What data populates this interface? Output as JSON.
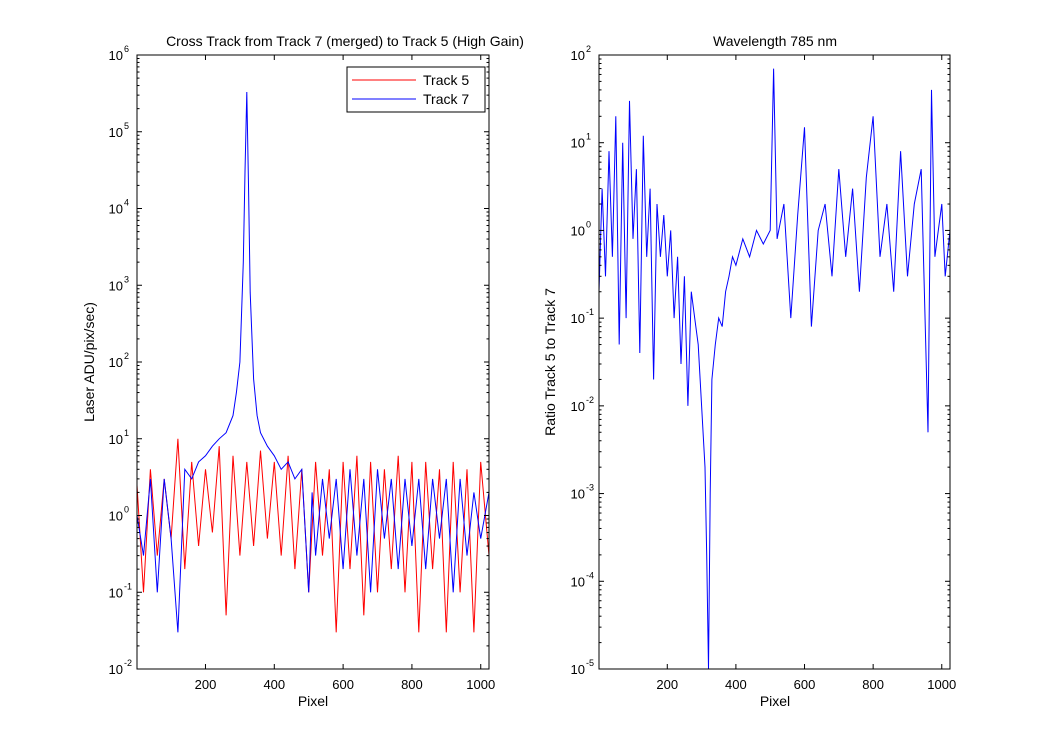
{
  "colors": {
    "track5": "#ff0000",
    "track7": "#0000ff",
    "axis": "#000000",
    "background": "#ffffff"
  },
  "chart_data": [
    {
      "type": "line",
      "title": "Cross Track from Track 7 (merged) to Track 5 (High Gain)",
      "xlabel": "Pixel",
      "ylabel": "Laser ADU/pix/sec)",
      "xlim": [
        1,
        1024
      ],
      "ylim": [
        0.01,
        1000000
      ],
      "yscale": "log",
      "xticks": [
        "200",
        "400",
        "600",
        "800",
        "1000"
      ],
      "yticks": [
        {
          "base": "10",
          "exp": "-2"
        },
        {
          "base": "10",
          "exp": "-1"
        },
        {
          "base": "10",
          "exp": "0"
        },
        {
          "base": "10",
          "exp": "1"
        },
        {
          "base": "10",
          "exp": "2"
        },
        {
          "base": "10",
          "exp": "3"
        },
        {
          "base": "10",
          "exp": "4"
        },
        {
          "base": "10",
          "exp": "5"
        },
        {
          "base": "10",
          "exp": "6"
        }
      ],
      "legend": {
        "placement": "top-right",
        "entries": [
          "Track 5",
          "Track 7"
        ]
      },
      "grid": false,
      "series": [
        {
          "name": "Track 5",
          "x": [
            1,
            20,
            40,
            60,
            80,
            100,
            120,
            140,
            160,
            180,
            200,
            220,
            240,
            260,
            280,
            300,
            320,
            340,
            360,
            380,
            400,
            420,
            440,
            460,
            480,
            500,
            520,
            540,
            560,
            580,
            600,
            620,
            640,
            660,
            680,
            700,
            720,
            740,
            760,
            780,
            800,
            820,
            840,
            860,
            880,
            900,
            920,
            940,
            960,
            980,
            1000,
            1024
          ],
          "y": [
            2.5,
            0.1,
            4,
            0.3,
            3,
            0.5,
            10,
            0.2,
            5,
            0.4,
            4,
            0.6,
            8,
            0.05,
            6,
            0.3,
            5,
            0.4,
            7,
            0.5,
            5,
            0.3,
            6,
            0.2,
            4,
            0.1,
            5,
            0.3,
            4,
            0.03,
            5,
            0.2,
            6,
            0.05,
            5,
            0.1,
            4,
            0.2,
            6,
            0.1,
            5,
            0.03,
            5,
            0.2,
            4,
            0.03,
            5,
            0.1,
            4,
            0.03,
            5,
            0.3
          ]
        },
        {
          "name": "Track 7",
          "x": [
            1,
            20,
            40,
            60,
            80,
            100,
            120,
            140,
            160,
            180,
            200,
            220,
            240,
            260,
            280,
            290,
            300,
            310,
            315,
            320,
            325,
            330,
            340,
            350,
            360,
            380,
            400,
            420,
            440,
            460,
            480,
            500,
            510,
            520,
            540,
            560,
            580,
            600,
            620,
            640,
            660,
            680,
            700,
            720,
            740,
            760,
            780,
            800,
            820,
            840,
            860,
            880,
            900,
            920,
            940,
            960,
            980,
            1000,
            1024
          ],
          "y": [
            1,
            0.3,
            3,
            0.1,
            3,
            0.5,
            0.03,
            4,
            3,
            5,
            6,
            8,
            10,
            12,
            20,
            40,
            100,
            2000,
            30000,
            330000,
            20000,
            800,
            60,
            20,
            12,
            8,
            6,
            4,
            5,
            3,
            4,
            0.1,
            2,
            0.3,
            3,
            0.5,
            3,
            0.2,
            4,
            0.3,
            3,
            0.1,
            4,
            0.5,
            3,
            0.2,
            3,
            0.4,
            3,
            0.2,
            3,
            0.5,
            3,
            0.1,
            3,
            0.3,
            2,
            0.5,
            2
          ]
        }
      ]
    },
    {
      "type": "line",
      "title": "Wavelength 785 nm",
      "xlabel": "Pixel",
      "ylabel": "Ratio Track 5 to Track 7",
      "xlim": [
        1,
        1024
      ],
      "ylim": [
        1e-05,
        100
      ],
      "yscale": "log",
      "xticks": [
        "200",
        "400",
        "600",
        "800",
        "1000"
      ],
      "yticks": [
        {
          "base": "10",
          "exp": "-5"
        },
        {
          "base": "10",
          "exp": "-4"
        },
        {
          "base": "10",
          "exp": "-3"
        },
        {
          "base": "10",
          "exp": "-2"
        },
        {
          "base": "10",
          "exp": "-1"
        },
        {
          "base": "10",
          "exp": "0"
        },
        {
          "base": "10",
          "exp": "1"
        },
        {
          "base": "10",
          "exp": "2"
        }
      ],
      "grid": false,
      "series": [
        {
          "x": [
            1,
            10,
            20,
            30,
            40,
            50,
            60,
            70,
            80,
            90,
            100,
            110,
            120,
            130,
            140,
            150,
            160,
            170,
            180,
            190,
            200,
            210,
            220,
            230,
            240,
            250,
            260,
            270,
            280,
            290,
            300,
            310,
            315,
            320,
            325,
            330,
            340,
            350,
            360,
            370,
            380,
            390,
            400,
            420,
            440,
            460,
            480,
            500,
            510,
            520,
            540,
            560,
            580,
            600,
            620,
            640,
            660,
            680,
            700,
            720,
            740,
            760,
            780,
            800,
            820,
            840,
            860,
            880,
            900,
            920,
            940,
            960,
            970,
            980,
            990,
            1000,
            1010,
            1024
          ],
          "y": [
            0.2,
            3,
            0.3,
            8,
            0.5,
            20,
            0.05,
            10,
            0.1,
            30,
            0.8,
            5,
            0.04,
            12,
            0.5,
            3,
            0.02,
            2,
            0.5,
            1.5,
            0.3,
            1,
            0.1,
            0.5,
            0.03,
            0.3,
            0.01,
            0.2,
            0.1,
            0.05,
            0.01,
            0.002,
            0.0002,
            1e-05,
            0.001,
            0.02,
            0.05,
            0.1,
            0.08,
            0.2,
            0.3,
            0.5,
            0.4,
            0.8,
            0.5,
            1,
            0.7,
            1,
            70,
            0.8,
            2,
            0.1,
            1.5,
            15,
            0.08,
            1,
            2,
            0.3,
            5,
            0.5,
            3,
            0.2,
            4,
            20,
            0.5,
            2,
            0.2,
            8,
            0.3,
            2,
            5,
            0.005,
            40,
            0.5,
            1,
            2,
            0.3,
            1
          ]
        }
      ]
    }
  ]
}
